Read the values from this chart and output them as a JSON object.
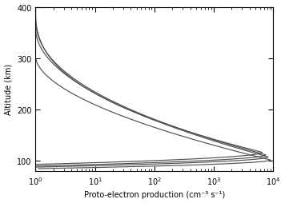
{
  "xlabel": "Proto-electron production (cm⁻³ s⁻¹)",
  "ylabel": "Altitude (km)",
  "xlim": [
    1,
    10000
  ],
  "ylim": [
    80,
    400
  ],
  "yticks": [
    100,
    200,
    300,
    400
  ],
  "background_color": "#ffffff",
  "line_color": "#505050",
  "curves": [
    {
      "alt_top": 393,
      "peak_prod": 6500,
      "peak_alt": 117,
      "base_alt": 93,
      "concavity": 2.5
    },
    {
      "alt_top": 378,
      "peak_prod": 7500,
      "peak_alt": 112,
      "base_alt": 90,
      "concavity": 2.2
    },
    {
      "alt_top": 358,
      "peak_prod": 8200,
      "peak_alt": 108,
      "base_alt": 88,
      "concavity": 2.0
    },
    {
      "alt_top": 303,
      "peak_prod": 9000,
      "peak_alt": 102,
      "base_alt": 85,
      "concavity": 1.8
    }
  ]
}
